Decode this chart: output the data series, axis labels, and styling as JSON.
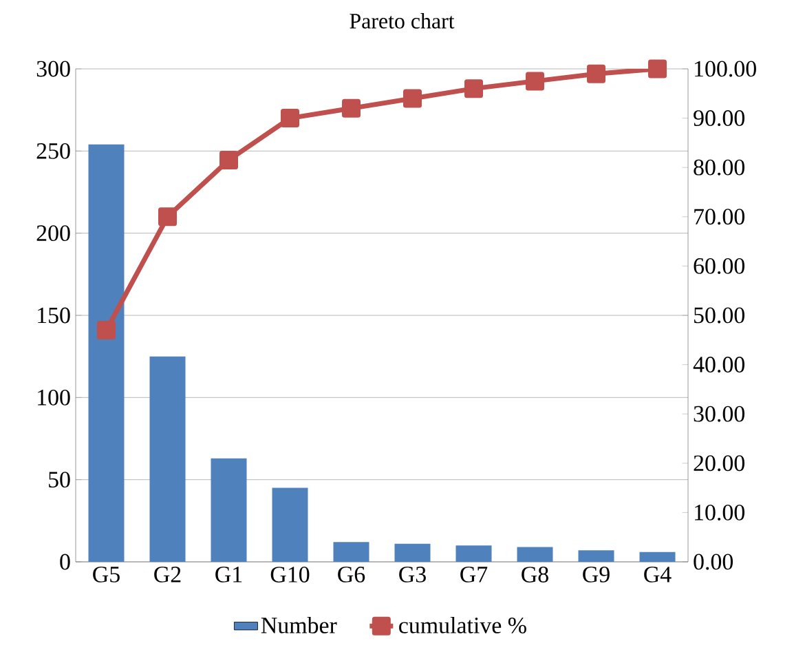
{
  "chart_data": {
    "type": "bar",
    "title": "Pareto chart",
    "categories": [
      "G5",
      "G2",
      "G1",
      "G10",
      "G6",
      "G3",
      "G7",
      "G8",
      "G9",
      "G4"
    ],
    "series": [
      {
        "name": "Number",
        "color": "#4f81bd",
        "values": [
          254,
          125,
          63,
          45,
          12,
          11,
          10,
          9,
          7,
          6
        ]
      },
      {
        "name": "cumulative %",
        "type": "line",
        "axis": "y2",
        "color": "#c0504d",
        "marker": "square",
        "values": [
          47,
          70,
          81.5,
          90,
          92,
          94,
          96,
          97.5,
          99,
          100
        ]
      }
    ],
    "ylim": [
      0,
      300
    ],
    "yticks": [
      0,
      50,
      100,
      150,
      200,
      250,
      300
    ],
    "y2lim": [
      0,
      100
    ],
    "y2ticks": [
      {
        "value": 0,
        "label": "0.00"
      },
      {
        "value": 10,
        "label": "10.00"
      },
      {
        "value": 20,
        "label": "20.00"
      },
      {
        "value": 30,
        "label": "30.00"
      },
      {
        "value": 40,
        "label": "40.00"
      },
      {
        "value": 50,
        "label": "50.00"
      },
      {
        "value": 60,
        "label": "60.00"
      },
      {
        "value": 70,
        "label": "70.00"
      },
      {
        "value": 80,
        "label": "80.00"
      },
      {
        "value": 90,
        "label": "90.00"
      },
      {
        "value": 100,
        "label": "100.00"
      }
    ],
    "grid": "y",
    "legend": "bottom"
  }
}
